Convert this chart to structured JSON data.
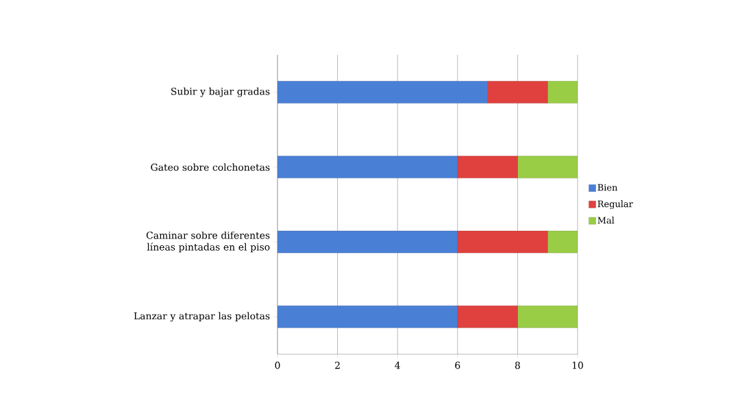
{
  "chart_data": {
    "type": "bar",
    "orientation": "horizontal",
    "stacked": true,
    "categories": [
      "Subir y bajar gradas",
      "Gateo sobre colchonetas",
      "Caminar sobre diferentes líneas pintadas en el piso",
      "Lanzar y atrapar las pelotas"
    ],
    "series": [
      {
        "name": "Bien",
        "color": "#4a7fd6",
        "values": [
          7,
          6,
          6,
          6
        ]
      },
      {
        "name": "Regular",
        "color": "#e0413e",
        "values": [
          2,
          2,
          3,
          2
        ]
      },
      {
        "name": "Mal",
        "color": "#9acd46",
        "values": [
          1,
          2,
          1,
          2
        ]
      }
    ],
    "xlim": [
      0,
      10
    ],
    "xticks": [
      0,
      2,
      4,
      6,
      8,
      10
    ],
    "grid": "x",
    "legend": "right"
  }
}
